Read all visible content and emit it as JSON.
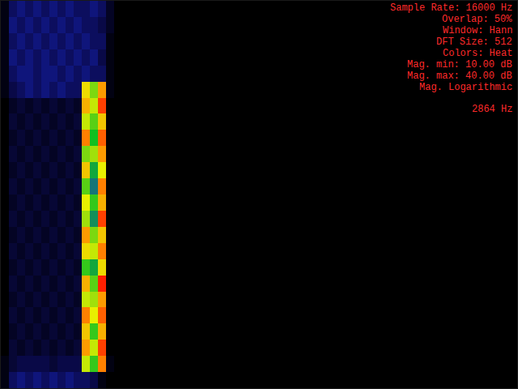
{
  "chart_data": {
    "type": "heatmap",
    "annotations": [
      "Sample Rate: 16000 Hz",
      "Overlap: 50%",
      "Window: Hann",
      "DFT Size: 512",
      "Colors: Heat",
      "Mag. min: 10.00 dB",
      "Mag. max: 40.00 dB",
      "Mag. Logarithmic"
    ],
    "cursor_label": "2864 Hz",
    "x": [
      62.5,
      187.5,
      312.5,
      437.5,
      562.5,
      687.5,
      812.5,
      937.5,
      1062.5,
      1187.5,
      1312.5,
      1437.5,
      1562.5,
      1687.5
    ],
    "y": [
      0.5,
      1.5,
      2.5,
      3.5,
      4.5,
      5.5,
      6.5,
      7.5,
      8.5,
      9.5,
      10.5,
      11.5,
      12.5,
      13.5,
      14.5,
      15.5,
      16.5,
      17.5,
      18.5,
      19.5,
      20.5,
      21.5,
      22.5,
      23.5
    ],
    "z": [
      [
        11,
        15,
        16,
        15,
        16,
        15,
        16,
        15,
        16,
        15,
        15,
        16,
        15,
        12
      ],
      [
        11,
        16,
        15,
        16,
        15,
        16,
        15,
        16,
        15,
        16,
        15,
        15,
        14,
        12
      ],
      [
        11,
        15,
        16,
        15,
        16,
        15,
        16,
        15,
        16,
        15,
        16,
        15,
        15,
        11
      ],
      [
        11,
        16,
        15,
        16,
        15,
        16,
        15,
        16,
        15,
        16,
        15,
        16,
        14,
        11
      ],
      [
        11,
        15,
        16,
        16,
        15,
        16,
        16,
        15,
        16,
        15,
        16,
        15,
        15,
        11
      ],
      [
        11,
        14,
        15,
        16,
        15,
        16,
        15,
        16,
        15,
        15,
        32,
        28,
        35,
        11
      ],
      [
        10,
        12,
        13,
        12,
        13,
        12,
        13,
        12,
        13,
        12,
        34,
        30,
        38,
        10
      ],
      [
        10,
        13,
        12,
        13,
        12,
        13,
        12,
        13,
        12,
        13,
        30,
        27,
        33,
        10
      ],
      [
        10,
        12,
        13,
        12,
        13,
        12,
        13,
        12,
        13,
        12,
        36,
        25,
        37,
        10
      ],
      [
        10,
        13,
        12,
        13,
        12,
        13,
        12,
        13,
        12,
        13,
        28,
        29,
        35,
        10
      ],
      [
        10,
        12,
        13,
        12,
        13,
        12,
        13,
        12,
        13,
        12,
        33,
        24,
        31,
        10
      ],
      [
        10,
        13,
        12,
        13,
        12,
        13,
        12,
        13,
        12,
        13,
        27,
        22,
        36,
        10
      ],
      [
        10,
        12,
        13,
        12,
        13,
        12,
        13,
        12,
        13,
        12,
        31,
        26,
        34,
        10
      ],
      [
        10,
        13,
        12,
        13,
        12,
        13,
        12,
        13,
        12,
        13,
        29,
        23,
        38,
        10
      ],
      [
        10,
        12,
        13,
        12,
        13,
        12,
        13,
        12,
        13,
        12,
        35,
        28,
        33,
        10
      ],
      [
        10,
        13,
        12,
        13,
        12,
        13,
        12,
        13,
        12,
        13,
        32,
        30,
        36,
        10
      ],
      [
        10,
        12,
        13,
        12,
        13,
        12,
        13,
        12,
        13,
        12,
        26,
        24,
        32,
        10
      ],
      [
        10,
        13,
        12,
        13,
        12,
        13,
        12,
        13,
        12,
        13,
        34,
        27,
        39,
        10
      ],
      [
        10,
        12,
        13,
        12,
        13,
        12,
        13,
        12,
        13,
        12,
        30,
        29,
        35,
        10
      ],
      [
        10,
        13,
        12,
        13,
        12,
        13,
        12,
        13,
        12,
        13,
        36,
        31,
        37,
        10
      ],
      [
        10,
        12,
        13,
        12,
        13,
        12,
        13,
        12,
        13,
        12,
        33,
        26,
        34,
        10
      ],
      [
        10,
        13,
        12,
        13,
        12,
        13,
        12,
        13,
        12,
        13,
        35,
        30,
        38,
        10
      ],
      [
        11,
        13,
        14,
        14,
        14,
        14,
        13,
        14,
        14,
        14,
        30,
        26,
        36,
        11
      ],
      [
        11,
        15,
        16,
        15,
        16,
        15,
        16,
        15,
        16,
        15,
        15,
        14,
        11,
        10
      ]
    ],
    "xlim": [
      0,
      8000
    ],
    "ylim": [
      24,
      0
    ],
    "zlim": [
      10,
      40
    ],
    "tick_labels": false,
    "grid": false
  }
}
